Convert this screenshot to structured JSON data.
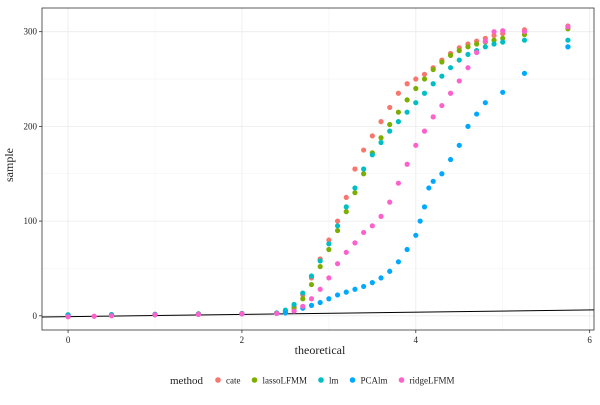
{
  "chart_data": {
    "type": "scatter",
    "title": "",
    "xlabel": "theoretical",
    "ylabel": "sample",
    "xlim": [
      -0.3,
      6.05
    ],
    "ylim": [
      -15,
      325
    ],
    "x_ticks": [
      0,
      2,
      4,
      6
    ],
    "y_ticks": [
      0,
      100,
      200,
      300
    ],
    "grid": true,
    "legend_position": "bottom",
    "legend_title": "method",
    "reference_line": {
      "x": [
        -0.3,
        6.05
      ],
      "y": [
        -1.3,
        6.2
      ],
      "color": "#000000"
    },
    "series": [
      {
        "name": "cate",
        "color": "#F8766D",
        "points": [
          [
            0,
            1
          ],
          [
            0.5,
            1.2
          ],
          [
            1,
            1.5
          ],
          [
            1.5,
            2
          ],
          [
            2,
            2.5
          ],
          [
            2.4,
            3
          ],
          [
            2.5,
            5
          ],
          [
            2.6,
            10
          ],
          [
            2.7,
            22
          ],
          [
            2.8,
            40
          ],
          [
            2.9,
            60
          ],
          [
            3.0,
            80
          ],
          [
            3.1,
            100
          ],
          [
            3.2,
            125
          ],
          [
            3.3,
            155
          ],
          [
            3.4,
            175
          ],
          [
            3.5,
            190
          ],
          [
            3.6,
            205
          ],
          [
            3.7,
            220
          ],
          [
            3.8,
            235
          ],
          [
            3.9,
            245
          ],
          [
            4.0,
            250
          ],
          [
            4.1,
            255
          ],
          [
            4.2,
            262
          ],
          [
            4.3,
            270
          ],
          [
            4.4,
            277
          ],
          [
            4.5,
            283
          ],
          [
            4.6,
            287
          ],
          [
            4.7,
            290
          ],
          [
            4.8,
            293
          ],
          [
            4.9,
            296
          ],
          [
            5.0,
            298
          ],
          [
            5.25,
            302
          ],
          [
            5.75,
            306
          ]
        ]
      },
      {
        "name": "lassoLFMM",
        "color": "#7CAE00",
        "points": [
          [
            0,
            1
          ],
          [
            0.5,
            1.2
          ],
          [
            1,
            1.5
          ],
          [
            1.5,
            2
          ],
          [
            2,
            2.5
          ],
          [
            2.4,
            3
          ],
          [
            2.5,
            4
          ],
          [
            2.6,
            8
          ],
          [
            2.7,
            18
          ],
          [
            2.8,
            33
          ],
          [
            2.9,
            52
          ],
          [
            3.0,
            70
          ],
          [
            3.1,
            90
          ],
          [
            3.2,
            110
          ],
          [
            3.3,
            130
          ],
          [
            3.4,
            150
          ],
          [
            3.5,
            172
          ],
          [
            3.6,
            188
          ],
          [
            3.7,
            202
          ],
          [
            3.8,
            215
          ],
          [
            3.9,
            228
          ],
          [
            4.0,
            240
          ],
          [
            4.1,
            250
          ],
          [
            4.2,
            260
          ],
          [
            4.3,
            268
          ],
          [
            4.4,
            275
          ],
          [
            4.5,
            280
          ],
          [
            4.6,
            284
          ],
          [
            4.7,
            287
          ],
          [
            4.8,
            289
          ],
          [
            4.9,
            291
          ],
          [
            5.0,
            293
          ],
          [
            5.25,
            297
          ],
          [
            5.75,
            303
          ]
        ]
      },
      {
        "name": "lm",
        "color": "#00BFC4",
        "points": [
          [
            0,
            1
          ],
          [
            0.5,
            1.2
          ],
          [
            1,
            1.5
          ],
          [
            1.5,
            2
          ],
          [
            2,
            2.5
          ],
          [
            2.4,
            3
          ],
          [
            2.5,
            6
          ],
          [
            2.6,
            12
          ],
          [
            2.7,
            24
          ],
          [
            2.8,
            42
          ],
          [
            2.9,
            58
          ],
          [
            3.0,
            76
          ],
          [
            3.1,
            95
          ],
          [
            3.2,
            115
          ],
          [
            3.3,
            135
          ],
          [
            3.4,
            155
          ],
          [
            3.5,
            170
          ],
          [
            3.6,
            183
          ],
          [
            3.7,
            195
          ],
          [
            3.8,
            205
          ],
          [
            3.9,
            215
          ],
          [
            4.0,
            225
          ],
          [
            4.1,
            235
          ],
          [
            4.2,
            245
          ],
          [
            4.3,
            253
          ],
          [
            4.4,
            262
          ],
          [
            4.5,
            270
          ],
          [
            4.6,
            276
          ],
          [
            4.7,
            280
          ],
          [
            4.8,
            284
          ],
          [
            4.9,
            287
          ],
          [
            5.0,
            289
          ],
          [
            5.25,
            291
          ],
          [
            5.75,
            291
          ],
          [
            5.75,
            284
          ]
        ]
      },
      {
        "name": "PCAlm",
        "color": "#00A9FF",
        "points": [
          [
            0,
            0
          ],
          [
            0.5,
            0.5
          ],
          [
            1,
            1
          ],
          [
            1.5,
            1.5
          ],
          [
            2,
            2
          ],
          [
            2.4,
            2.5
          ],
          [
            2.5,
            3
          ],
          [
            2.6,
            5
          ],
          [
            2.7,
            8
          ],
          [
            2.8,
            11
          ],
          [
            2.9,
            14
          ],
          [
            3.0,
            18
          ],
          [
            3.1,
            22
          ],
          [
            3.2,
            25
          ],
          [
            3.3,
            28
          ],
          [
            3.4,
            31
          ],
          [
            3.5,
            35
          ],
          [
            3.6,
            40
          ],
          [
            3.7,
            47
          ],
          [
            3.8,
            57
          ],
          [
            3.9,
            70
          ],
          [
            4.0,
            85
          ],
          [
            4.05,
            100
          ],
          [
            4.1,
            115
          ],
          [
            4.15,
            135
          ],
          [
            4.2,
            142
          ],
          [
            4.3,
            150
          ],
          [
            4.4,
            165
          ],
          [
            4.5,
            180
          ],
          [
            4.6,
            200
          ],
          [
            4.7,
            213
          ],
          [
            4.8,
            225
          ],
          [
            5.0,
            236
          ],
          [
            5.25,
            256
          ],
          [
            5.75,
            284
          ]
        ]
      },
      {
        "name": "ridgeLFMM",
        "color": "#FF61CC",
        "points": [
          [
            0,
            -1
          ],
          [
            0.3,
            -0.5
          ],
          [
            0.5,
            0
          ],
          [
            1,
            1
          ],
          [
            1.5,
            1.5
          ],
          [
            2,
            2
          ],
          [
            2.4,
            2.5
          ],
          [
            2.6,
            5
          ],
          [
            2.7,
            10
          ],
          [
            2.8,
            18
          ],
          [
            2.9,
            28
          ],
          [
            3.0,
            40
          ],
          [
            3.1,
            55
          ],
          [
            3.2,
            67
          ],
          [
            3.3,
            77
          ],
          [
            3.4,
            88
          ],
          [
            3.5,
            95
          ],
          [
            3.6,
            105
          ],
          [
            3.7,
            120
          ],
          [
            3.8,
            140
          ],
          [
            3.9,
            160
          ],
          [
            4.0,
            180
          ],
          [
            4.1,
            195
          ],
          [
            4.2,
            210
          ],
          [
            4.3,
            222
          ],
          [
            4.4,
            235
          ],
          [
            4.5,
            248
          ],
          [
            4.6,
            262
          ],
          [
            4.7,
            278
          ],
          [
            4.8,
            290
          ],
          [
            4.9,
            300
          ],
          [
            5.0,
            301
          ],
          [
            5.25,
            300
          ],
          [
            5.75,
            305
          ]
        ]
      }
    ]
  }
}
